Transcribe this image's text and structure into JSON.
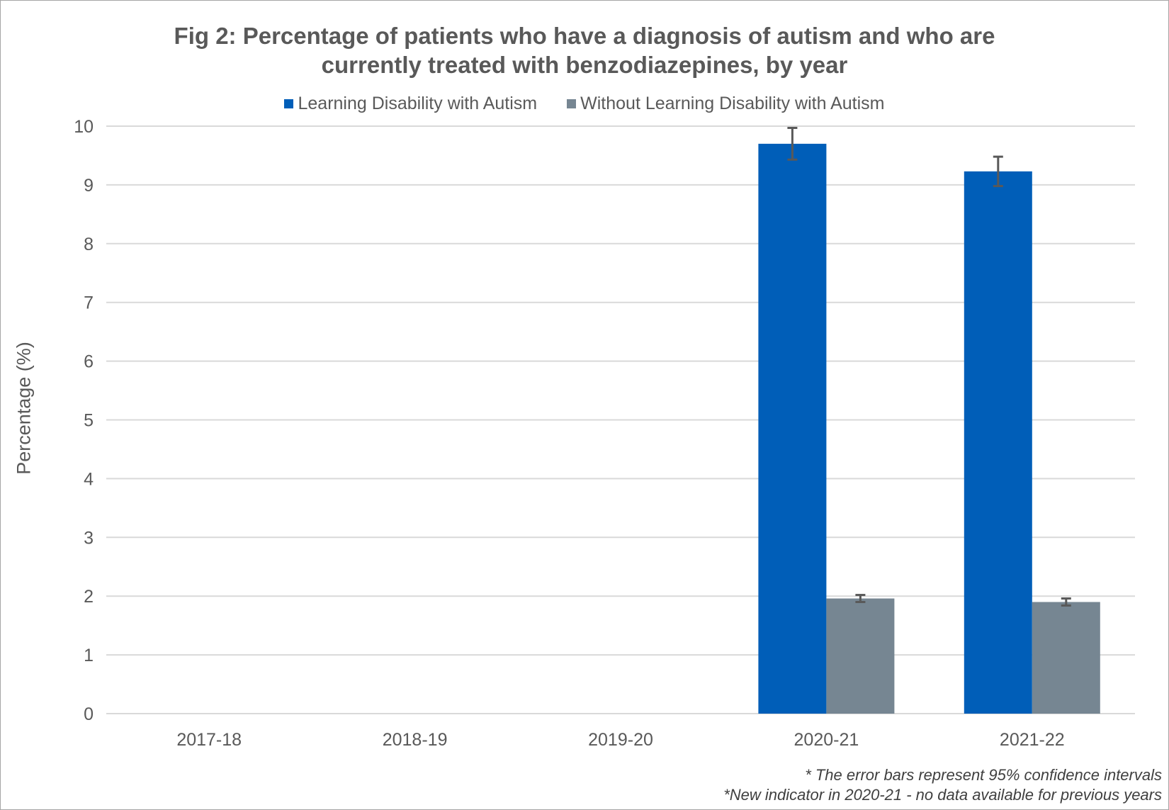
{
  "chart_data": {
    "type": "bar",
    "title_lines": [
      "Fig 2: Percentage of patients who have a diagnosis of autism and who are",
      "currently treated with benzodiazepines, by year"
    ],
    "xlabel": "",
    "ylabel": "Percentage (%)",
    "ylim": [
      0,
      10
    ],
    "yticks": [
      0,
      1,
      2,
      3,
      4,
      5,
      6,
      7,
      8,
      9,
      10
    ],
    "grid": true,
    "legend_position": "top-center",
    "categories": [
      "2017-18",
      "2018-19",
      "2019-20",
      "2020-21",
      "2021-22"
    ],
    "series": [
      {
        "name": "Learning Disability with Autism",
        "color": "#005EB8",
        "values": [
          null,
          null,
          null,
          9.7,
          9.23
        ],
        "error_low": [
          null,
          null,
          null,
          9.43,
          8.98
        ],
        "error_high": [
          null,
          null,
          null,
          9.97,
          9.48
        ]
      },
      {
        "name": "Without Learning Disability with Autism",
        "color": "#768692",
        "values": [
          null,
          null,
          null,
          1.96,
          1.9
        ],
        "error_low": [
          null,
          null,
          null,
          1.9,
          1.84
        ],
        "error_high": [
          null,
          null,
          null,
          2.02,
          1.96
        ]
      }
    ],
    "notes": [
      "* The error bars represent 95% confidence intervals",
      "*New indicator in 2020-21 - no data available for previous years"
    ]
  }
}
